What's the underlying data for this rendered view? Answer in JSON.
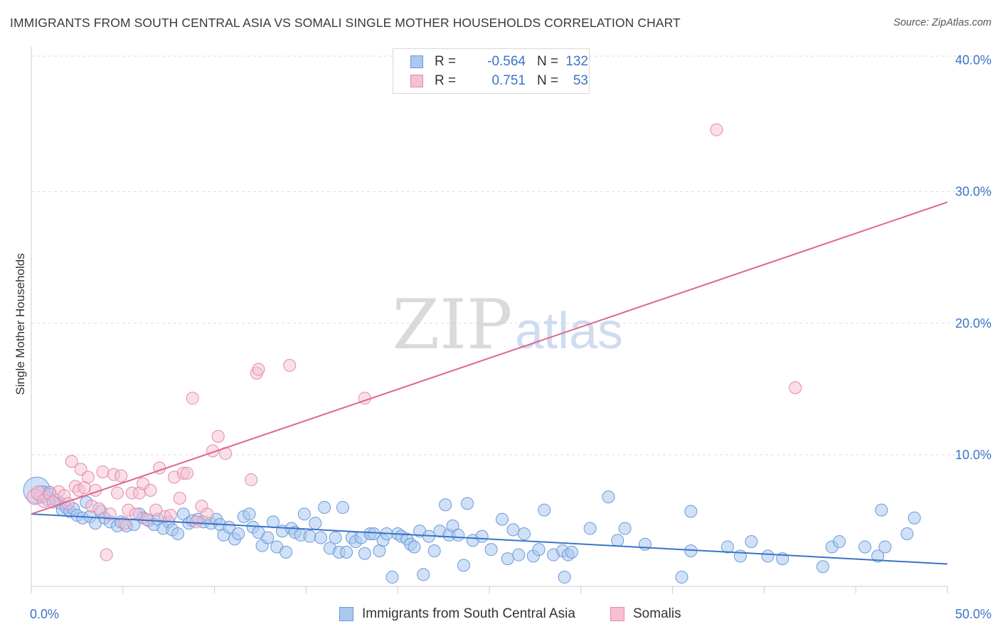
{
  "title": "IMMIGRANTS FROM SOUTH CENTRAL ASIA VS SOMALI SINGLE MOTHER HOUSEHOLDS CORRELATION CHART",
  "source": "Source: ZipAtlas.com",
  "watermark": {
    "zip": "ZIP",
    "atlas": "atlas"
  },
  "legend": {
    "r_label": "R =",
    "n_label": "N =",
    "rows": [
      {
        "r": "-0.564",
        "n": "132"
      },
      {
        "r": "0.751",
        "n": "53"
      }
    ]
  },
  "bottom_legend": [
    "Immigrants from South Central Asia",
    "Somalis"
  ],
  "colors": {
    "blue_fill": "#aac8f0",
    "blue_stroke": "#6a9ad8",
    "blue_line": "#3a74c8",
    "pink_fill": "#f6bfd2",
    "pink_stroke": "#e48aab",
    "pink_line": "#e0648e",
    "axis_text": "#3a74c8",
    "grid": "#dddddd"
  },
  "chart_data": {
    "type": "scatter",
    "title": "IMMIGRANTS FROM SOUTH CENTRAL ASIA VS SOMALI SINGLE MOTHER HOUSEHOLDS CORRELATION CHART",
    "xlabel": "",
    "ylabel": "Single Mother Households",
    "xlim": [
      0,
      50
    ],
    "ylim": [
      0,
      40.3
    ],
    "x_tick_labels": [
      {
        "value": 0,
        "label": "0.0%"
      },
      {
        "value": 50,
        "label": "50.0%"
      }
    ],
    "y_tick_labels": [
      {
        "value": 10,
        "label": "10.0%"
      },
      {
        "value": 20,
        "label": "20.0%"
      },
      {
        "value": 30,
        "label": "30.0%"
      },
      {
        "value": 40,
        "label": "40.0%"
      }
    ],
    "y_gridlines": [
      10,
      20,
      30,
      40.3
    ],
    "series": [
      {
        "name": "Immigrants from South Central Asia",
        "R": -0.564,
        "N": 132,
        "trendline": [
          [
            0,
            5.5
          ],
          [
            50,
            1.7
          ]
        ],
        "points": [
          [
            0.3,
            7.3,
            2.2
          ],
          [
            0.6,
            7.0,
            1.4
          ],
          [
            0.9,
            6.7,
            1.2
          ],
          [
            1.0,
            7.1,
            1.1
          ],
          [
            1.3,
            6.6,
            1
          ],
          [
            1.6,
            6.3,
            1
          ],
          [
            1.7,
            5.8,
            1
          ],
          [
            1.9,
            6.0,
            1
          ],
          [
            2.1,
            5.7,
            1
          ],
          [
            2.3,
            5.9,
            1
          ],
          [
            2.5,
            5.4,
            1
          ],
          [
            2.8,
            5.2,
            1
          ],
          [
            3.0,
            6.4,
            1
          ],
          [
            3.2,
            5.3,
            1
          ],
          [
            3.5,
            4.8,
            1
          ],
          [
            3.8,
            5.7,
            1
          ],
          [
            4.0,
            5.2,
            1
          ],
          [
            4.3,
            4.9,
            1
          ],
          [
            4.7,
            4.6,
            1
          ],
          [
            4.9,
            4.9,
            1
          ],
          [
            5.2,
            4.6,
            1
          ],
          [
            5.6,
            4.7,
            1
          ],
          [
            5.9,
            5.5,
            1
          ],
          [
            6.1,
            5.2,
            1
          ],
          [
            6.4,
            5.0,
            1
          ],
          [
            6.7,
            4.7,
            1
          ],
          [
            6.9,
            5.1,
            1
          ],
          [
            7.2,
            4.4,
            1
          ],
          [
            7.5,
            4.9,
            1
          ],
          [
            7.7,
            4.3,
            1
          ],
          [
            8.0,
            4.0,
            1
          ],
          [
            8.3,
            5.5,
            1
          ],
          [
            8.6,
            4.8,
            1
          ],
          [
            8.8,
            5.0,
            1
          ],
          [
            9.1,
            5.1,
            1
          ],
          [
            9.4,
            4.9,
            1
          ],
          [
            9.8,
            4.8,
            1
          ],
          [
            10.1,
            5.1,
            1
          ],
          [
            10.3,
            4.7,
            1
          ],
          [
            10.5,
            3.9,
            1
          ],
          [
            10.8,
            4.5,
            1
          ],
          [
            11.1,
            3.6,
            1
          ],
          [
            11.3,
            4.0,
            1
          ],
          [
            11.6,
            5.3,
            1
          ],
          [
            11.9,
            5.5,
            1
          ],
          [
            12.1,
            4.5,
            1
          ],
          [
            12.4,
            4.1,
            1
          ],
          [
            12.6,
            3.1,
            1
          ],
          [
            12.9,
            3.7,
            1
          ],
          [
            13.2,
            4.9,
            1
          ],
          [
            13.4,
            3.0,
            1
          ],
          [
            13.7,
            4.2,
            1
          ],
          [
            13.9,
            2.6,
            1
          ],
          [
            14.2,
            4.4,
            1
          ],
          [
            14.4,
            4.1,
            1
          ],
          [
            14.7,
            3.9,
            1
          ],
          [
            14.9,
            5.5,
            1
          ],
          [
            15.2,
            3.8,
            1
          ],
          [
            15.5,
            4.8,
            1
          ],
          [
            15.8,
            3.7,
            1
          ],
          [
            16.0,
            6.0,
            1
          ],
          [
            16.3,
            2.9,
            1
          ],
          [
            16.6,
            3.7,
            1
          ],
          [
            16.8,
            2.6,
            1
          ],
          [
            17.0,
            6.0,
            1
          ],
          [
            17.2,
            2.6,
            1
          ],
          [
            17.5,
            3.7,
            1
          ],
          [
            17.7,
            3.4,
            1
          ],
          [
            18.0,
            3.7,
            1
          ],
          [
            18.2,
            2.5,
            1
          ],
          [
            18.5,
            4.0,
            1
          ],
          [
            18.7,
            4.0,
            1
          ],
          [
            19.0,
            2.7,
            1
          ],
          [
            19.2,
            3.5,
            1
          ],
          [
            19.4,
            4.0,
            1
          ],
          [
            19.7,
            0.7,
            1
          ],
          [
            20.0,
            4.0,
            1
          ],
          [
            20.2,
            3.8,
            1
          ],
          [
            20.5,
            3.6,
            1
          ],
          [
            20.7,
            3.2,
            1
          ],
          [
            20.9,
            3.0,
            1
          ],
          [
            21.2,
            4.2,
            1
          ],
          [
            21.4,
            0.9,
            1
          ],
          [
            21.7,
            3.8,
            1
          ],
          [
            22.0,
            2.7,
            1
          ],
          [
            22.3,
            4.2,
            1
          ],
          [
            22.6,
            6.2,
            1
          ],
          [
            22.8,
            3.9,
            1
          ],
          [
            23.0,
            4.6,
            1
          ],
          [
            23.3,
            3.9,
            1
          ],
          [
            23.6,
            1.6,
            1
          ],
          [
            23.8,
            6.3,
            1
          ],
          [
            24.1,
            3.5,
            1
          ],
          [
            24.6,
            3.8,
            1
          ],
          [
            25.1,
            2.8,
            1
          ],
          [
            25.7,
            5.1,
            1
          ],
          [
            26.0,
            2.1,
            1
          ],
          [
            26.3,
            4.3,
            1
          ],
          [
            26.6,
            2.4,
            1
          ],
          [
            26.9,
            4.0,
            1
          ],
          [
            27.4,
            2.3,
            1
          ],
          [
            27.7,
            2.8,
            1
          ],
          [
            28.0,
            5.8,
            1
          ],
          [
            28.5,
            2.4,
            1
          ],
          [
            29.0,
            2.7,
            1
          ],
          [
            29.3,
            2.4,
            1
          ],
          [
            29.5,
            2.6,
            1
          ],
          [
            31.5,
            6.8,
            1
          ],
          [
            32.0,
            3.5,
            1
          ],
          [
            33.5,
            3.2,
            1
          ],
          [
            29.1,
            0.7,
            1
          ],
          [
            30.5,
            4.4,
            1
          ],
          [
            32.4,
            4.4,
            1
          ],
          [
            35.5,
            0.7,
            1
          ],
          [
            36.0,
            5.7,
            1
          ],
          [
            38.0,
            3.0,
            1
          ],
          [
            38.7,
            2.3,
            1
          ],
          [
            39.3,
            3.4,
            1
          ],
          [
            40.2,
            2.3,
            1
          ],
          [
            41.0,
            2.1,
            1
          ],
          [
            43.2,
            1.5,
            1
          ],
          [
            43.7,
            3.0,
            1
          ],
          [
            44.1,
            3.4,
            1
          ],
          [
            45.5,
            3.0,
            1
          ],
          [
            46.2,
            2.3,
            1
          ],
          [
            46.4,
            5.8,
            1
          ],
          [
            46.6,
            3.0,
            1
          ],
          [
            48.2,
            5.2,
            1
          ],
          [
            47.8,
            4.0,
            1
          ],
          [
            36.0,
            2.7,
            1
          ]
        ]
      },
      {
        "name": "Somalis",
        "R": 0.751,
        "N": 53,
        "trendline": [
          [
            0,
            5.5
          ],
          [
            50,
            29.2
          ]
        ],
        "points": [
          [
            0.2,
            6.8,
            1.3
          ],
          [
            0.4,
            7.1,
            1.2
          ],
          [
            0.7,
            6.5,
            1.1
          ],
          [
            1.0,
            7.0,
            1
          ],
          [
            1.2,
            6.4,
            1
          ],
          [
            1.5,
            7.2,
            1
          ],
          [
            1.8,
            6.9,
            1
          ],
          [
            2.0,
            6.3,
            1
          ],
          [
            2.2,
            9.5,
            1
          ],
          [
            2.4,
            7.6,
            1
          ],
          [
            2.6,
            7.3,
            1
          ],
          [
            2.7,
            8.9,
            1
          ],
          [
            2.9,
            7.5,
            1
          ],
          [
            3.1,
            8.3,
            1
          ],
          [
            3.3,
            6.1,
            1
          ],
          [
            3.5,
            7.3,
            1
          ],
          [
            3.7,
            5.9,
            1
          ],
          [
            3.9,
            8.7,
            1
          ],
          [
            4.1,
            2.4,
            1
          ],
          [
            4.3,
            5.5,
            1
          ],
          [
            4.5,
            8.5,
            1
          ],
          [
            4.7,
            7.1,
            1
          ],
          [
            4.9,
            8.4,
            1
          ],
          [
            5.1,
            4.8,
            1
          ],
          [
            5.3,
            5.8,
            1
          ],
          [
            5.5,
            7.1,
            1
          ],
          [
            5.7,
            5.5,
            1
          ],
          [
            5.9,
            7.1,
            1
          ],
          [
            6.1,
            7.8,
            1
          ],
          [
            6.3,
            5.1,
            1
          ],
          [
            6.5,
            7.3,
            1
          ],
          [
            6.8,
            5.8,
            1
          ],
          [
            7.0,
            9.0,
            1
          ],
          [
            7.3,
            5.3,
            1
          ],
          [
            7.6,
            5.4,
            1
          ],
          [
            7.8,
            8.3,
            1
          ],
          [
            8.1,
            6.7,
            1
          ],
          [
            8.3,
            8.6,
            1
          ],
          [
            8.5,
            8.6,
            1
          ],
          [
            8.8,
            14.3,
            1
          ],
          [
            9.0,
            4.9,
            1
          ],
          [
            9.3,
            6.1,
            1
          ],
          [
            9.6,
            5.5,
            1
          ],
          [
            9.9,
            10.3,
            1
          ],
          [
            10.2,
            11.4,
            1
          ],
          [
            10.6,
            10.1,
            1
          ],
          [
            12.0,
            8.1,
            1
          ],
          [
            12.3,
            16.2,
            1
          ],
          [
            12.4,
            16.5,
            1
          ],
          [
            14.1,
            16.8,
            1
          ],
          [
            18.2,
            14.3,
            1
          ],
          [
            37.4,
            34.7,
            1
          ],
          [
            41.7,
            15.1,
            1
          ]
        ]
      }
    ]
  }
}
